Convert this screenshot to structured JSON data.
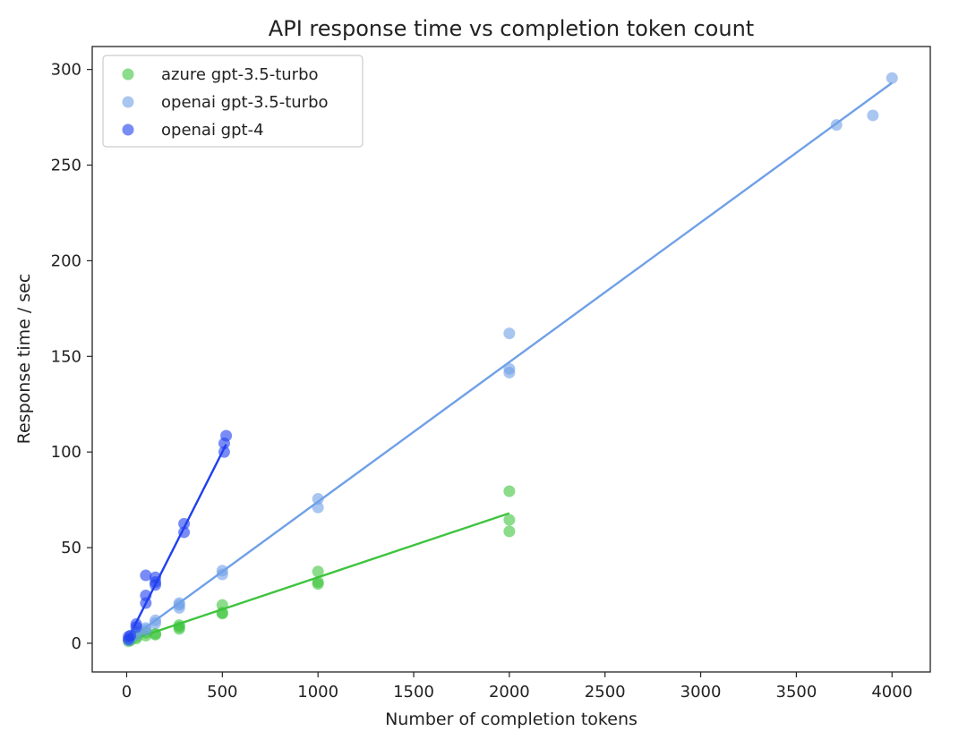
{
  "chart_data": {
    "type": "scatter",
    "title": "API response time vs completion token count",
    "xlabel": "Number of completion tokens",
    "ylabel": "Response time / sec",
    "xlim": [
      -180,
      4200
    ],
    "ylim": [
      -15,
      312
    ],
    "xticks": [
      0,
      500,
      1000,
      1500,
      2000,
      2500,
      3000,
      3500,
      4000
    ],
    "yticks": [
      0,
      50,
      100,
      150,
      200,
      250,
      300
    ],
    "grid": false,
    "legend_position": "top-left",
    "series": [
      {
        "name": "azure gpt-3.5-turbo",
        "color": "#3ec43e",
        "points": [
          [
            10,
            1.0
          ],
          [
            20,
            1.5
          ],
          [
            50,
            2.5
          ],
          [
            50,
            3.5
          ],
          [
            100,
            4.0
          ],
          [
            100,
            5.5
          ],
          [
            150,
            4.5
          ],
          [
            150,
            5.0
          ],
          [
            275,
            7.5
          ],
          [
            275,
            8.5
          ],
          [
            275,
            9.5
          ],
          [
            500,
            15.5
          ],
          [
            500,
            16.0
          ],
          [
            500,
            20.0
          ],
          [
            1000,
            31.0
          ],
          [
            1000,
            32.0
          ],
          [
            1000,
            37.5
          ],
          [
            2000,
            58.5
          ],
          [
            2000,
            64.5
          ],
          [
            2000,
            79.5
          ]
        ],
        "fit": [
          [
            0,
            1.0
          ],
          [
            2000,
            68.0
          ]
        ]
      },
      {
        "name": "openai gpt-3.5-turbo",
        "color": "#6fa0e8",
        "points": [
          [
            10,
            1.5
          ],
          [
            20,
            2.5
          ],
          [
            50,
            4.5
          ],
          [
            50,
            6.0
          ],
          [
            100,
            7.0
          ],
          [
            100,
            8.0
          ],
          [
            150,
            10.5
          ],
          [
            150,
            12.0
          ],
          [
            275,
            18.5
          ],
          [
            275,
            20.0
          ],
          [
            275,
            21.0
          ],
          [
            500,
            36.0
          ],
          [
            500,
            38.0
          ],
          [
            1000,
            71.0
          ],
          [
            1000,
            75.5
          ],
          [
            2000,
            141.5
          ],
          [
            2000,
            143.5
          ],
          [
            2000,
            162.0
          ],
          [
            3710,
            271.0
          ],
          [
            3900,
            276.0
          ],
          [
            4000,
            295.5
          ]
        ],
        "fit": [
          [
            0,
            1.0
          ],
          [
            4000,
            293.0
          ]
        ]
      },
      {
        "name": "openai gpt-4",
        "color": "#1f3ff0",
        "points": [
          [
            10,
            2.0
          ],
          [
            10,
            3.5
          ],
          [
            20,
            4.0
          ],
          [
            50,
            8.5
          ],
          [
            50,
            10.0
          ],
          [
            100,
            21.0
          ],
          [
            100,
            25.0
          ],
          [
            100,
            35.5
          ],
          [
            150,
            30.5
          ],
          [
            150,
            32.0
          ],
          [
            150,
            34.5
          ],
          [
            300,
            58.0
          ],
          [
            300,
            62.5
          ],
          [
            510,
            100.0
          ],
          [
            510,
            104.5
          ],
          [
            520,
            108.5
          ]
        ],
        "fit": [
          [
            0,
            1.0
          ],
          [
            520,
            104.0
          ]
        ]
      }
    ]
  }
}
